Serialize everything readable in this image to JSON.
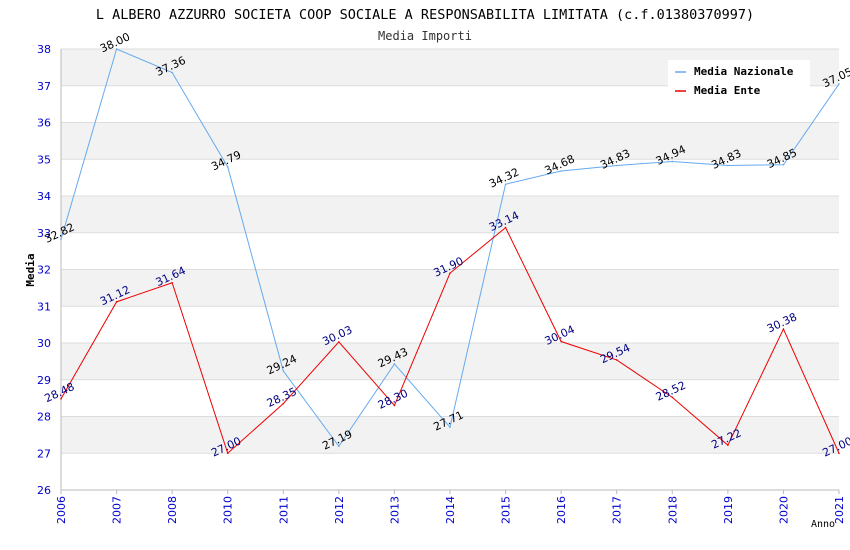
{
  "chart_data": {
    "type": "line",
    "title": "L ALBERO AZZURRO SOCIETA COOP SOCIALE A RESPONSABILITA LIMITATA (c.f.01380370997)",
    "subtitle": "Media Importi",
    "xlabel": "Anno",
    "ylabel": "Media",
    "categories": [
      "2006",
      "2007",
      "2008",
      "2010",
      "2011",
      "2012",
      "2013",
      "2014",
      "2015",
      "2016",
      "2017",
      "2018",
      "2019",
      "2020",
      "2021"
    ],
    "ylim": [
      26,
      38
    ],
    "yticks": [
      "26",
      "27",
      "28",
      "29",
      "30",
      "31",
      "32",
      "33",
      "34",
      "35",
      "36",
      "37",
      "38"
    ],
    "grid": true,
    "legend_position": "top-right",
    "series": [
      {
        "name": "Media Nazionale",
        "color": "#66aaee",
        "label_color": "#000000",
        "values": [
          32.82,
          38.0,
          37.36,
          34.79,
          29.24,
          27.19,
          29.43,
          27.71,
          34.32,
          34.68,
          34.83,
          34.94,
          34.83,
          34.85,
          37.05
        ],
        "labels": [
          "32.82",
          "38.00",
          "37.36",
          "34.79",
          "29.24",
          "27.19",
          "29.43",
          "27.71",
          "34.32",
          "34.68",
          "34.83",
          "34.94",
          "34.83",
          "34.85",
          "37.05"
        ]
      },
      {
        "name": "Media Ente",
        "color": "#ee0000",
        "label_color": "#000080",
        "values": [
          28.48,
          31.12,
          31.64,
          27.0,
          28.35,
          30.03,
          28.3,
          31.9,
          33.14,
          30.04,
          29.54,
          28.52,
          27.22,
          30.38,
          27.0
        ],
        "labels": [
          "28.48",
          "31.12",
          "31.64",
          "27.00",
          "28.35",
          "30.03",
          "28.30",
          "31.90",
          "33.14",
          "30.04",
          "29.54",
          "28.52",
          "27.22",
          "30.38",
          "27.00"
        ]
      }
    ],
    "colors": {
      "band": "#f2f2f2",
      "gridline": "#dddddd",
      "axis": "#bbbbbb",
      "tick_text": "#0000cc",
      "title_text": "#000000",
      "subtitle_text": "#333333"
    }
  }
}
